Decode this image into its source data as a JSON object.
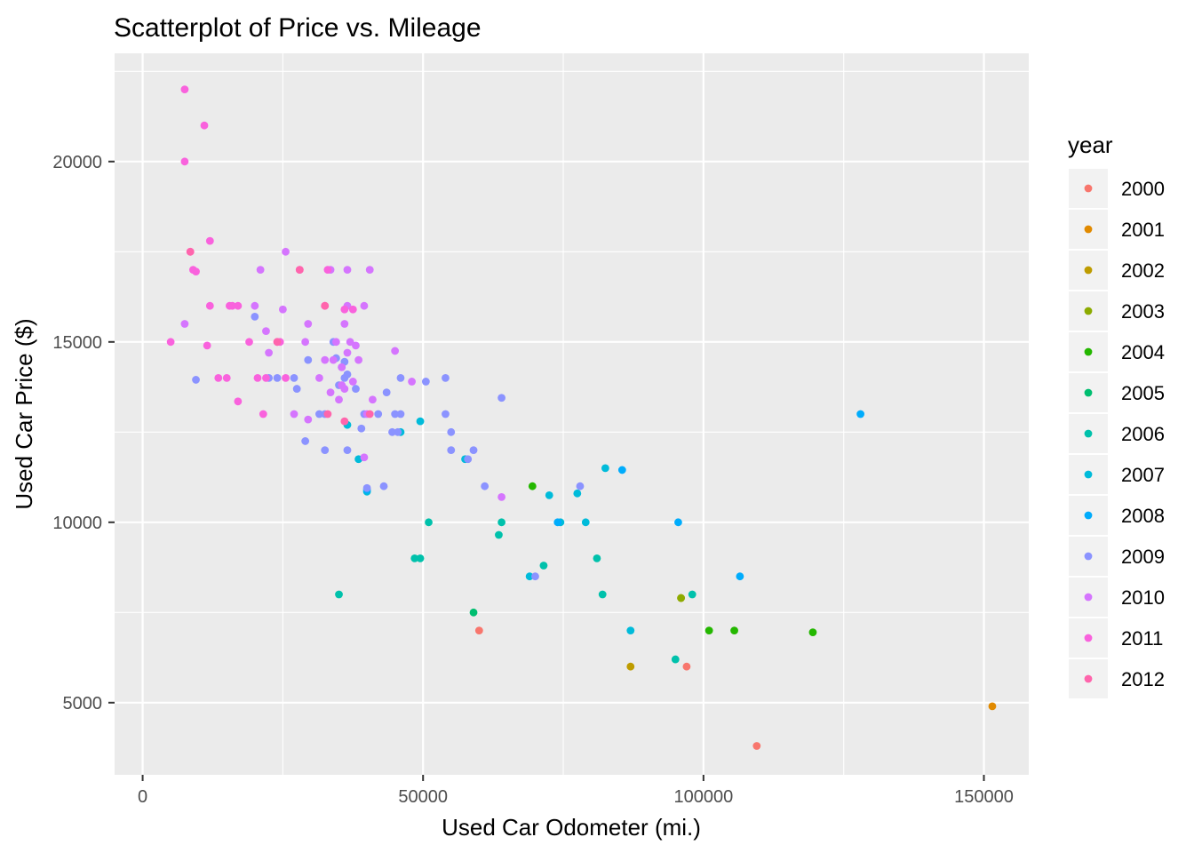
{
  "chart_data": {
    "type": "scatter",
    "title": "Scatterplot of Price vs. Mileage",
    "xlabel": "Used Car Odometer (mi.)",
    "ylabel": "Used Car Price ($)",
    "xlim": [
      -5000,
      158000
    ],
    "ylim": [
      3000,
      23000
    ],
    "x_ticks": [
      0,
      50000,
      100000,
      150000
    ],
    "x_tick_labels": [
      "0",
      "50000",
      "100000",
      "150000"
    ],
    "y_ticks": [
      5000,
      10000,
      15000,
      20000
    ],
    "y_tick_labels": [
      "5000",
      "10000",
      "15000",
      "20000"
    ],
    "grid": true,
    "legend": {
      "title": "year",
      "position": "right",
      "entries": [
        "2000",
        "2001",
        "2002",
        "2003",
        "2004",
        "2005",
        "2006",
        "2007",
        "2008",
        "2009",
        "2010",
        "2011",
        "2012"
      ]
    },
    "colors": {
      "2000": "#F8766D",
      "2001": "#E18A00",
      "2002": "#BE9C00",
      "2003": "#8CAB00",
      "2004": "#24B700",
      "2005": "#00BE70",
      "2006": "#00C1AB",
      "2007": "#00BBDA",
      "2008": "#00ACFC",
      "2009": "#8B93FF",
      "2010": "#D575FE",
      "2011": "#F962DD",
      "2012": "#FF65AC"
    },
    "series": [
      {
        "name": "2000",
        "points": [
          [
            60000,
            7000
          ],
          [
            97000,
            6000
          ],
          [
            109500,
            3800
          ]
        ]
      },
      {
        "name": "2001",
        "points": [
          [
            151500,
            4900
          ]
        ]
      },
      {
        "name": "2002",
        "points": [
          [
            87000,
            6000
          ],
          [
            96000,
            7900
          ]
        ]
      },
      {
        "name": "2003",
        "points": [
          [
            96000,
            7900
          ]
        ]
      },
      {
        "name": "2004",
        "points": [
          [
            69500,
            11000
          ],
          [
            101000,
            7000
          ],
          [
            105500,
            7000
          ],
          [
            119500,
            6950
          ]
        ]
      },
      {
        "name": "2005",
        "points": [
          [
            59000,
            7500
          ]
        ]
      },
      {
        "name": "2006",
        "points": [
          [
            35000,
            8000
          ],
          [
            48500,
            9000
          ],
          [
            49500,
            9000
          ],
          [
            51000,
            10000
          ],
          [
            64000,
            10000
          ],
          [
            63500,
            9650
          ],
          [
            71500,
            8800
          ],
          [
            81000,
            9000
          ],
          [
            95000,
            6200
          ],
          [
            98000,
            8000
          ],
          [
            82000,
            8000
          ]
        ]
      },
      {
        "name": "2007",
        "points": [
          [
            36500,
            12700
          ],
          [
            38500,
            11750
          ],
          [
            40000,
            10850
          ],
          [
            46000,
            12500
          ],
          [
            49500,
            12800
          ],
          [
            57500,
            11750
          ],
          [
            69000,
            8500
          ],
          [
            72500,
            10750
          ],
          [
            74500,
            10000
          ],
          [
            77500,
            10800
          ],
          [
            79000,
            10000
          ],
          [
            82500,
            11500
          ],
          [
            87000,
            7000
          ]
        ]
      },
      {
        "name": "2008",
        "points": [
          [
            40000,
            10900
          ],
          [
            74000,
            10000
          ],
          [
            85500,
            11450
          ],
          [
            95500,
            10000
          ],
          [
            106500,
            8500
          ],
          [
            128000,
            13000
          ]
        ]
      },
      {
        "name": "2009",
        "points": [
          [
            9500,
            13950
          ],
          [
            20000,
            15700
          ],
          [
            22500,
            14000
          ],
          [
            24000,
            14000
          ],
          [
            27000,
            14000
          ],
          [
            27500,
            13700
          ],
          [
            29000,
            12250
          ],
          [
            29500,
            14500
          ],
          [
            31500,
            13000
          ],
          [
            32500,
            12000
          ],
          [
            32500,
            13000
          ],
          [
            34000,
            15000
          ],
          [
            34500,
            14550
          ],
          [
            35000,
            13800
          ],
          [
            35500,
            14300
          ],
          [
            36000,
            14450
          ],
          [
            36000,
            14000
          ],
          [
            36500,
            14100
          ],
          [
            36500,
            12000
          ],
          [
            38000,
            13700
          ],
          [
            39000,
            12600
          ],
          [
            39500,
            13000
          ],
          [
            40000,
            10950
          ],
          [
            42000,
            13000
          ],
          [
            43000,
            11000
          ],
          [
            43500,
            13600
          ],
          [
            44500,
            12500
          ],
          [
            45000,
            13000
          ],
          [
            45500,
            12500
          ],
          [
            46000,
            13000
          ],
          [
            46000,
            14000
          ],
          [
            50500,
            13900
          ],
          [
            54000,
            14000
          ],
          [
            54000,
            13000
          ],
          [
            55000,
            12500
          ],
          [
            55000,
            12000
          ],
          [
            58000,
            11750
          ],
          [
            59000,
            12000
          ],
          [
            61000,
            11000
          ],
          [
            64000,
            13450
          ],
          [
            70000,
            8500
          ],
          [
            78000,
            11000
          ]
        ]
      },
      {
        "name": "2010",
        "points": [
          [
            7500,
            15500
          ],
          [
            20000,
            16000
          ],
          [
            21000,
            17000
          ],
          [
            22000,
            15300
          ],
          [
            22500,
            14700
          ],
          [
            25000,
            15900
          ],
          [
            25500,
            17500
          ],
          [
            27000,
            13000
          ],
          [
            29000,
            15000
          ],
          [
            29500,
            15500
          ],
          [
            29500,
            12850
          ],
          [
            31500,
            14000
          ],
          [
            32500,
            14500
          ],
          [
            33500,
            13600
          ],
          [
            34000,
            14500
          ],
          [
            35000,
            13400
          ],
          [
            35500,
            13800
          ],
          [
            35500,
            14300
          ],
          [
            36000,
            15500
          ],
          [
            36500,
            16000
          ],
          [
            36500,
            17000
          ],
          [
            36500,
            14700
          ],
          [
            37000,
            15000
          ],
          [
            38000,
            14900
          ],
          [
            38500,
            14500
          ],
          [
            39500,
            11800
          ],
          [
            40000,
            13000
          ],
          [
            40500,
            17000
          ],
          [
            41000,
            13400
          ],
          [
            45000,
            14750
          ],
          [
            48000,
            13900
          ],
          [
            64000,
            10700
          ],
          [
            36000,
            13700
          ],
          [
            37500,
            13900
          ],
          [
            39500,
            16000
          ],
          [
            33500,
            17000
          ],
          [
            34500,
            15000
          ]
        ]
      },
      {
        "name": "2011",
        "points": [
          [
            5000,
            15000
          ],
          [
            7500,
            22000
          ],
          [
            7500,
            20000
          ],
          [
            8500,
            17500
          ],
          [
            9000,
            17000
          ],
          [
            9500,
            16950
          ],
          [
            11000,
            21000
          ],
          [
            11500,
            14900
          ],
          [
            12000,
            16000
          ],
          [
            12000,
            17800
          ],
          [
            13500,
            14000
          ],
          [
            15000,
            14000
          ],
          [
            15500,
            16000
          ],
          [
            16000,
            16000
          ],
          [
            17000,
            16000
          ],
          [
            19000,
            15000
          ],
          [
            20500,
            14000
          ],
          [
            21500,
            13000
          ],
          [
            22000,
            14000
          ],
          [
            24000,
            15000
          ],
          [
            24500,
            15000
          ],
          [
            25500,
            14000
          ],
          [
            28000,
            17000
          ],
          [
            32500,
            16000
          ],
          [
            33000,
            17000
          ],
          [
            36000,
            15900
          ],
          [
            37500,
            15900
          ],
          [
            17000,
            13350
          ]
        ]
      },
      {
        "name": "2012",
        "points": [
          [
            8500,
            17500
          ],
          [
            24000,
            15000
          ],
          [
            28000,
            17000
          ],
          [
            32500,
            16000
          ],
          [
            33000,
            13000
          ],
          [
            36000,
            12800
          ],
          [
            40500,
            13000
          ]
        ]
      }
    ]
  }
}
